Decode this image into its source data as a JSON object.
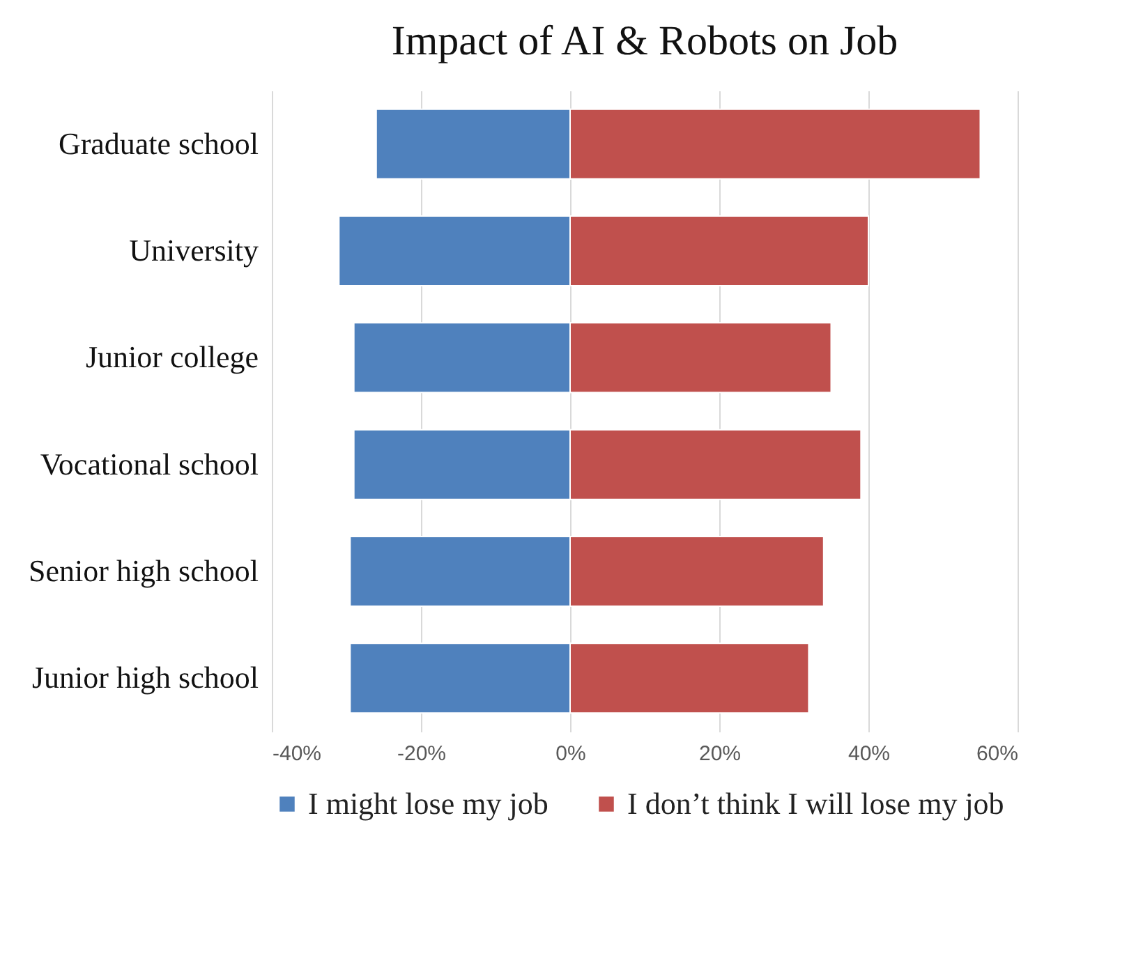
{
  "chart_data": {
    "type": "bar",
    "orientation": "horizontal",
    "title": "Impact of AI & Robots on Job",
    "categories": [
      "Graduate school",
      "University",
      "Junior college",
      "Vocational school",
      "Senior high school",
      "Junior high school"
    ],
    "series": [
      {
        "name": "I might lose my job",
        "color": "#4f81bd",
        "values": [
          -26,
          -31,
          -29,
          -29,
          -29.5,
          -29.5
        ]
      },
      {
        "name": "I don’t think I will lose my job",
        "color": "#c0504d",
        "values": [
          55,
          40,
          35,
          39,
          34,
          32
        ]
      }
    ],
    "xlim": [
      -40,
      60
    ],
    "xticks": [
      {
        "value": -40,
        "label": "-40%"
      },
      {
        "value": -20,
        "label": "-20%"
      },
      {
        "value": 0,
        "label": "0%"
      },
      {
        "value": 20,
        "label": "20%"
      },
      {
        "value": 40,
        "label": "40%"
      },
      {
        "value": 60,
        "label": "60%"
      }
    ],
    "grid": "x",
    "legend": "bottom",
    "stacked": true
  }
}
